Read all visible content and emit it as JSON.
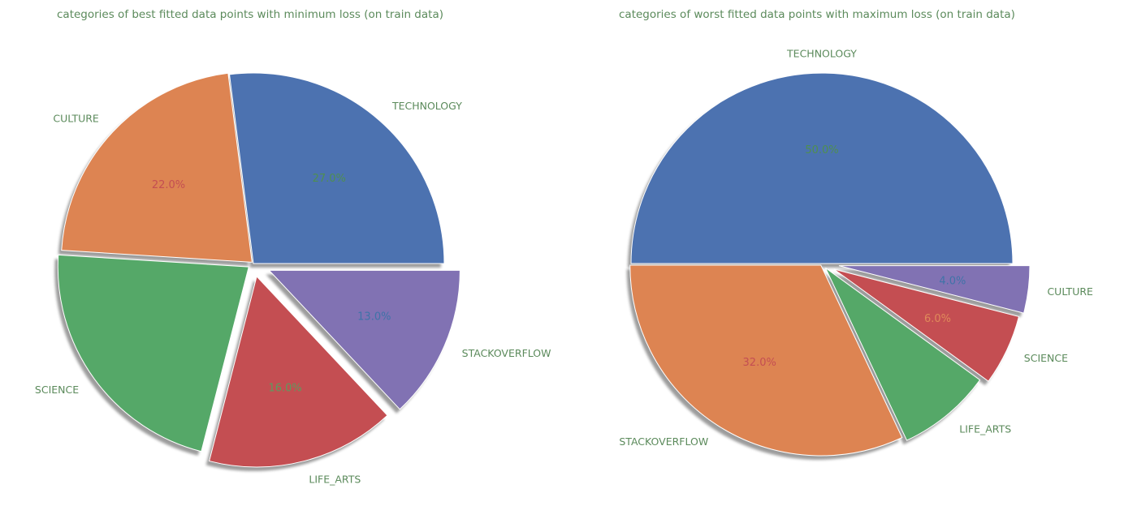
{
  "chart_data": [
    {
      "type": "pie",
      "title": "categories of best fitted data points with minimum loss (on train data)",
      "categories": [
        "TECHNOLOGY",
        "CULTURE",
        "SCIENCE",
        "LIFE_ARTS",
        "STACKOVERFLOW"
      ],
      "values": [
        27.0,
        22.0,
        22.0,
        16.0,
        13.0
      ],
      "value_labels": [
        "27.0%",
        "22.0%",
        "",
        "16.0%",
        "13.0%"
      ],
      "explode": [
        0,
        0.01,
        0.03,
        0.07,
        0.09
      ],
      "colors": [
        "#4c72b0",
        "#dd8452",
        "#55a868",
        "#c44e52",
        "#8172b3"
      ],
      "label_colors": [
        "#4f8f4f",
        "#c44e52",
        "#55a868",
        "#5e9a5e",
        "#3f73a8"
      ],
      "start_angle_deg": 0,
      "direction": "counterclockwise",
      "shadow": true
    },
    {
      "type": "pie",
      "title": "categories of worst fitted data points with maximum loss (on train data)",
      "categories": [
        "TECHNOLOGY",
        "STACKOVERFLOW",
        "LIFE_ARTS",
        "SCIENCE",
        "CULTURE"
      ],
      "values": [
        50.0,
        32.0,
        8.0,
        6.0,
        4.0
      ],
      "value_labels": [
        "50.0%",
        "32.0%",
        "",
        "6.0%",
        "4.0%"
      ],
      "explode": [
        0,
        0.01,
        0.03,
        0.07,
        0.09
      ],
      "colors": [
        "#4c72b0",
        "#dd8452",
        "#55a868",
        "#c44e52",
        "#8172b3"
      ],
      "label_colors": [
        "#4f8f4f",
        "#c44e52",
        "#55a868",
        "#e08a5a",
        "#3f73a8"
      ],
      "start_angle_deg": 0,
      "direction": "counterclockwise",
      "shadow": true
    }
  ]
}
